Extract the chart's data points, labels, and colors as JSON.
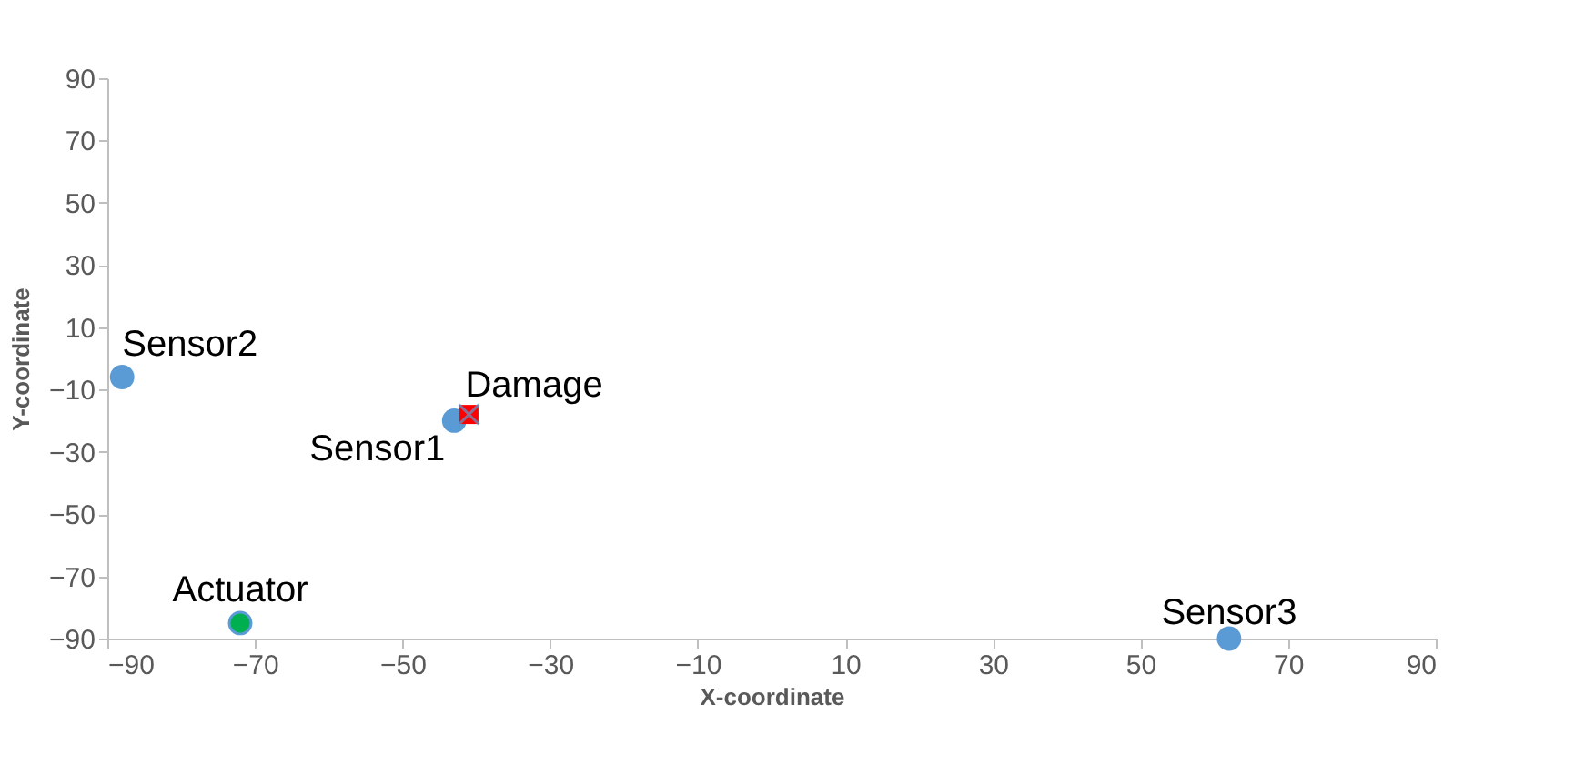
{
  "chart_data": {
    "type": "scatter",
    "xlabel": "X-coordinate",
    "ylabel": "Y-coordinate",
    "xlim": [
      -90,
      90
    ],
    "ylim": [
      -90,
      90
    ],
    "xticks": [
      -90,
      -70,
      -50,
      -30,
      -10,
      10,
      30,
      50,
      70,
      90
    ],
    "yticks": [
      -90,
      -70,
      -50,
      -30,
      -10,
      10,
      30,
      50,
      70,
      90
    ],
    "grid": false,
    "series": [
      {
        "color": "#5b9bd5",
        "marker": "circle",
        "x": [
          -43,
          -88,
          62,
          -72
        ],
        "values": [
          -20,
          -6,
          -90,
          -85
        ]
      },
      {
        "color": "#00b050",
        "marker": "circle",
        "x": [
          -72
        ],
        "values": [
          -85
        ]
      },
      {
        "color": "#ff0000",
        "marker": "square",
        "x": [
          -41
        ],
        "values": [
          -18
        ]
      },
      {
        "color": "#5b9bd5",
        "marker": "cross",
        "x": [
          -41
        ],
        "values": [
          -18
        ]
      }
    ],
    "annotations": [
      {
        "text": "Sensor1",
        "x": -43,
        "y": -20
      },
      {
        "text": "Sensor2",
        "x": -88,
        "y": -6
      },
      {
        "text": "Sensor3",
        "x": 62,
        "y": -90
      },
      {
        "text": "Actuator",
        "x": -72,
        "y": -85
      },
      {
        "text": "Damage",
        "x": -41,
        "y": -18
      }
    ]
  }
}
